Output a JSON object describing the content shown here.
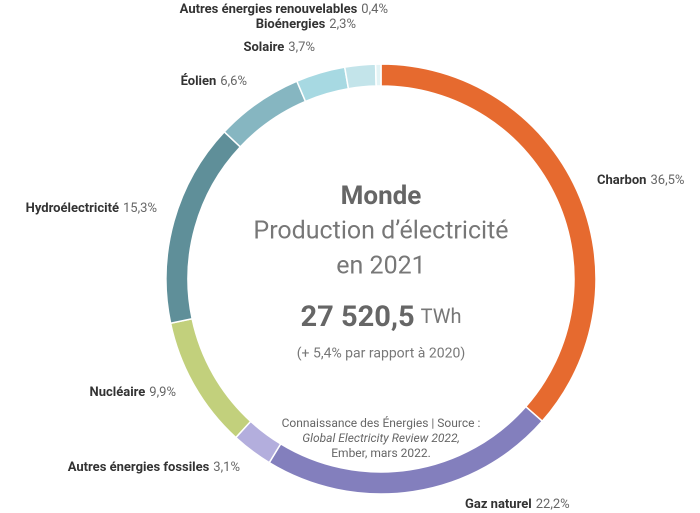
{
  "chart_data": {
    "type": "donut",
    "title": "Monde",
    "subtitle": [
      "Production d’électricité",
      "en 2021"
    ],
    "total": 27520.5,
    "total_label": "27 520,5",
    "unit": "TWh",
    "growth": "(+ 5,4% par rapport à 2020)",
    "source": [
      "Connaissance des Énergies | Source :",
      "Global Electricity Review 2022,",
      "Ember, mars 2022."
    ],
    "categories": [
      "Charbon",
      "Gaz naturel",
      "Autres énergies fossiles",
      "Nucléaire",
      "Hydroélectricité",
      "Éolien",
      "Solaire",
      "Bioénergies",
      "Autres énergies renouvelables"
    ],
    "values": [
      36.5,
      22.2,
      3.1,
      9.9,
      15.3,
      6.6,
      3.7,
      2.3,
      0.4
    ],
    "value_labels": [
      "36,5%",
      "22,2%",
      "3,1%",
      "9,9%",
      "15,3%",
      "6,6%",
      "3,7%",
      "2,3%",
      "0,4%"
    ],
    "colors": [
      "#e66a2f",
      "#837fbd",
      "#b3aedd",
      "#c2d07c",
      "#5f8f99",
      "#86b6c1",
      "#a7d9e2",
      "#c3e4ea",
      "#e2f3f5"
    ]
  }
}
